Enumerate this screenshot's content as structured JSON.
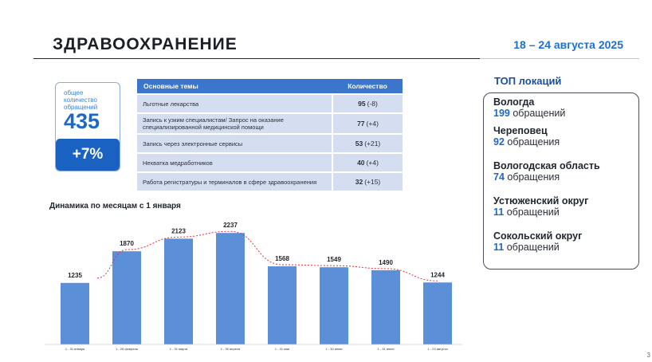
{
  "header": {
    "title": "ЗДРАВООХРАНЕНИЕ",
    "date_range": "18 – 24 августа 2025"
  },
  "total": {
    "label": "общее количество обращений",
    "value": "435",
    "delta": "+7%"
  },
  "topics_table": {
    "headers": [
      "Основные темы",
      "Количество"
    ],
    "rows": [
      {
        "topic": "Льготные лекарства",
        "count": "95",
        "change": "(-8)"
      },
      {
        "topic": "Запись к узким специалистам/ Запрос на оказание специализированной медицинской помощи",
        "count": "77",
        "change": "(+4)"
      },
      {
        "topic": "Запись через электронные сервисы",
        "count": "53",
        "change": "(+21)"
      },
      {
        "topic": "Нехватка медработников",
        "count": "40",
        "change": "(+4)"
      },
      {
        "topic": "Работа регистратуры и терминалов в сфере здравоохранения",
        "count": "32",
        "change": "(+15)"
      }
    ]
  },
  "chart_title": "Динамика по месяцам с 1 января",
  "chart_data": {
    "type": "bar",
    "title": "Динамика по месяцам с 1 января",
    "categories": [
      "1 - 31 января",
      "1 - 28 февраля",
      "1 - 31 марта",
      "1 - 30 апреля",
      "1 - 31 мая",
      "1 - 30 июня",
      "1 - 31 июля",
      "1 - 24 августа"
    ],
    "values": [
      1235,
      1870,
      2123,
      2237,
      1568,
      1549,
      1490,
      1244
    ],
    "trendline": true,
    "colors": {
      "bar": "#5b8fd8",
      "trend": "#e0303a"
    }
  },
  "top_locations": {
    "title": "ТОП локаций",
    "items": [
      {
        "name": "Вологда",
        "count": "199",
        "unit": "обращений"
      },
      {
        "name": "Череповец",
        "count": "92",
        "unit": "обращения"
      },
      {
        "name": "Вологодская область",
        "count": "74",
        "unit": "обращения"
      },
      {
        "name": "Устюженский округ",
        "count": "11",
        "unit": "обращений"
      },
      {
        "name": "Сокольский округ",
        "count": "11",
        "unit": "обращений"
      }
    ]
  },
  "page_number": "3"
}
